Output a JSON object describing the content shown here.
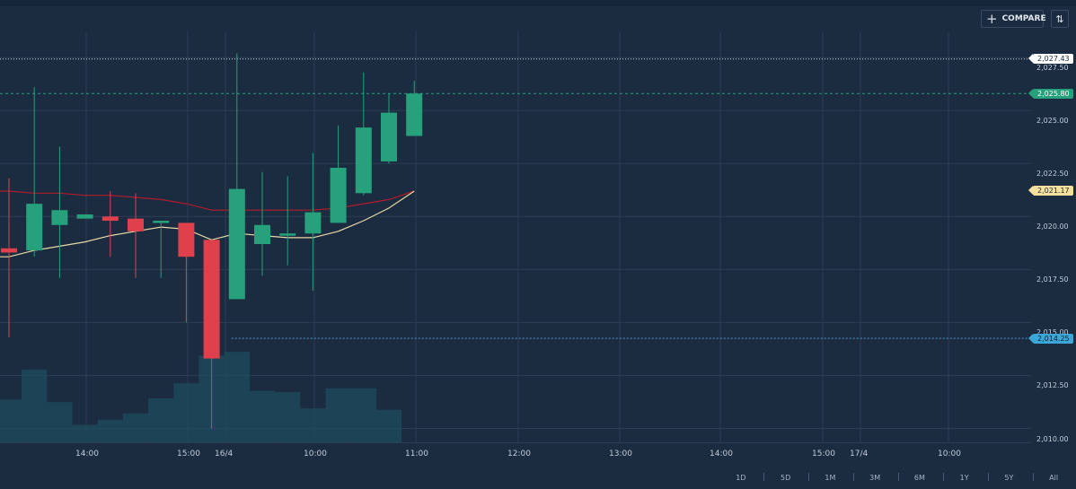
{
  "toolbar": {
    "compare_label": "COMPARE",
    "compare_icon": "plus-icon",
    "sort_icon": "sort-icon"
  },
  "price_badges": {
    "high_line": "2,027.43",
    "last_price": "2,025.80",
    "ma_value": "2,021.17",
    "low_line": "2,014.25"
  },
  "ranges": [
    "1D",
    "5D",
    "1M",
    "3M",
    "6M",
    "1Y",
    "5Y",
    "All"
  ],
  "colors": {
    "background": "#1b2b40",
    "up": "#26a17b",
    "down": "#e0404b",
    "ma_red": "#b01c2b",
    "ma_yellow": "#e8d9a6",
    "volume": "#1e4d5e",
    "highlow_line": "#ffffff",
    "low_line": "#3ca7d6",
    "last_line": "#26a17b"
  },
  "chart_data": {
    "type": "candlestick",
    "y_ticks": [
      "2,027.50",
      "2,025.00",
      "2,022.50",
      "2,020.00",
      "2,017.50",
      "2,015.00",
      "2,012.50",
      "2,010.00"
    ],
    "y_tick_values": [
      2027.5,
      2025,
      2022.5,
      2020,
      2017.5,
      2015,
      2012.5,
      2010
    ],
    "x_ticks": [
      "14:00",
      "15:00",
      "16/4",
      "10:00",
      "11:00",
      "12:00",
      "13:00",
      "14:00",
      "15:00",
      "17/4",
      "10:00"
    ],
    "ylim": [
      2009.5,
      2029.5
    ],
    "grid": true,
    "candles": [
      {
        "o": 2018.5,
        "h": 2021.8,
        "l": 2014.3,
        "c": 2018.3
      },
      {
        "o": 2018.4,
        "h": 2026.1,
        "l": 2018.1,
        "c": 2020.6
      },
      {
        "o": 2019.6,
        "h": 2023.3,
        "l": 2017.1,
        "c": 2020.3
      },
      {
        "o": 2019.9,
        "h": 2020.1,
        "l": 2019.9,
        "c": 2020.1
      },
      {
        "o": 2020.0,
        "h": 2021.2,
        "l": 2018.1,
        "c": 2019.8
      },
      {
        "o": 2019.9,
        "h": 2021.1,
        "l": 2017.1,
        "c": 2019.3
      },
      {
        "o": 2019.7,
        "h": 2019.8,
        "l": 2017.1,
        "c": 2019.8
      },
      {
        "o": 2019.7,
        "h": 2019.7,
        "l": 2015.0,
        "c": 2018.1
      },
      {
        "o": 2018.9,
        "h": 2018.9,
        "l": 2010.0,
        "c": 2013.3
      },
      {
        "o": 2016.1,
        "h": 2027.7,
        "l": 2016.1,
        "c": 2021.3
      },
      {
        "o": 2018.7,
        "h": 2022.1,
        "l": 2017.2,
        "c": 2019.6
      },
      {
        "o": 2019.1,
        "h": 2021.9,
        "l": 2017.7,
        "c": 2019.2
      },
      {
        "o": 2019.2,
        "h": 2023.0,
        "l": 2016.5,
        "c": 2020.2
      },
      {
        "o": 2019.7,
        "h": 2024.3,
        "l": 2019.7,
        "c": 2022.3
      },
      {
        "o": 2021.1,
        "h": 2026.8,
        "l": 2021.0,
        "c": 2024.2
      },
      {
        "o": 2022.6,
        "h": 2025.8,
        "l": 2022.5,
        "c": 2024.9
      },
      {
        "o": 2023.8,
        "h": 2026.4,
        "l": 2023.8,
        "c": 2025.8
      }
    ],
    "volume_relative": [
      0.34,
      0.58,
      0.32,
      0.14,
      0.18,
      0.23,
      0.35,
      0.47,
      0.69,
      0.72,
      0.41,
      0.4,
      0.27,
      0.43,
      0.43,
      0.26,
      0.0
    ],
    "ma_yellow": [
      2018.1,
      2018.4,
      2018.6,
      2018.8,
      2019.1,
      2019.3,
      2019.5,
      2019.4,
      2018.9,
      2019.2,
      2019.1,
      2019.0,
      2019.0,
      2019.3,
      2019.8,
      2020.4,
      2021.2
    ],
    "ma_red": [
      2021.2,
      2021.1,
      2021.1,
      2021.0,
      2021.0,
      2020.9,
      2020.8,
      2020.6,
      2020.3,
      2020.3,
      2020.3,
      2020.3,
      2020.3,
      2020.4,
      2020.6,
      2020.8,
      2021.2
    ],
    "reference_lines": {
      "high": 2027.43,
      "last": 2025.8,
      "low": 2014.25
    }
  }
}
